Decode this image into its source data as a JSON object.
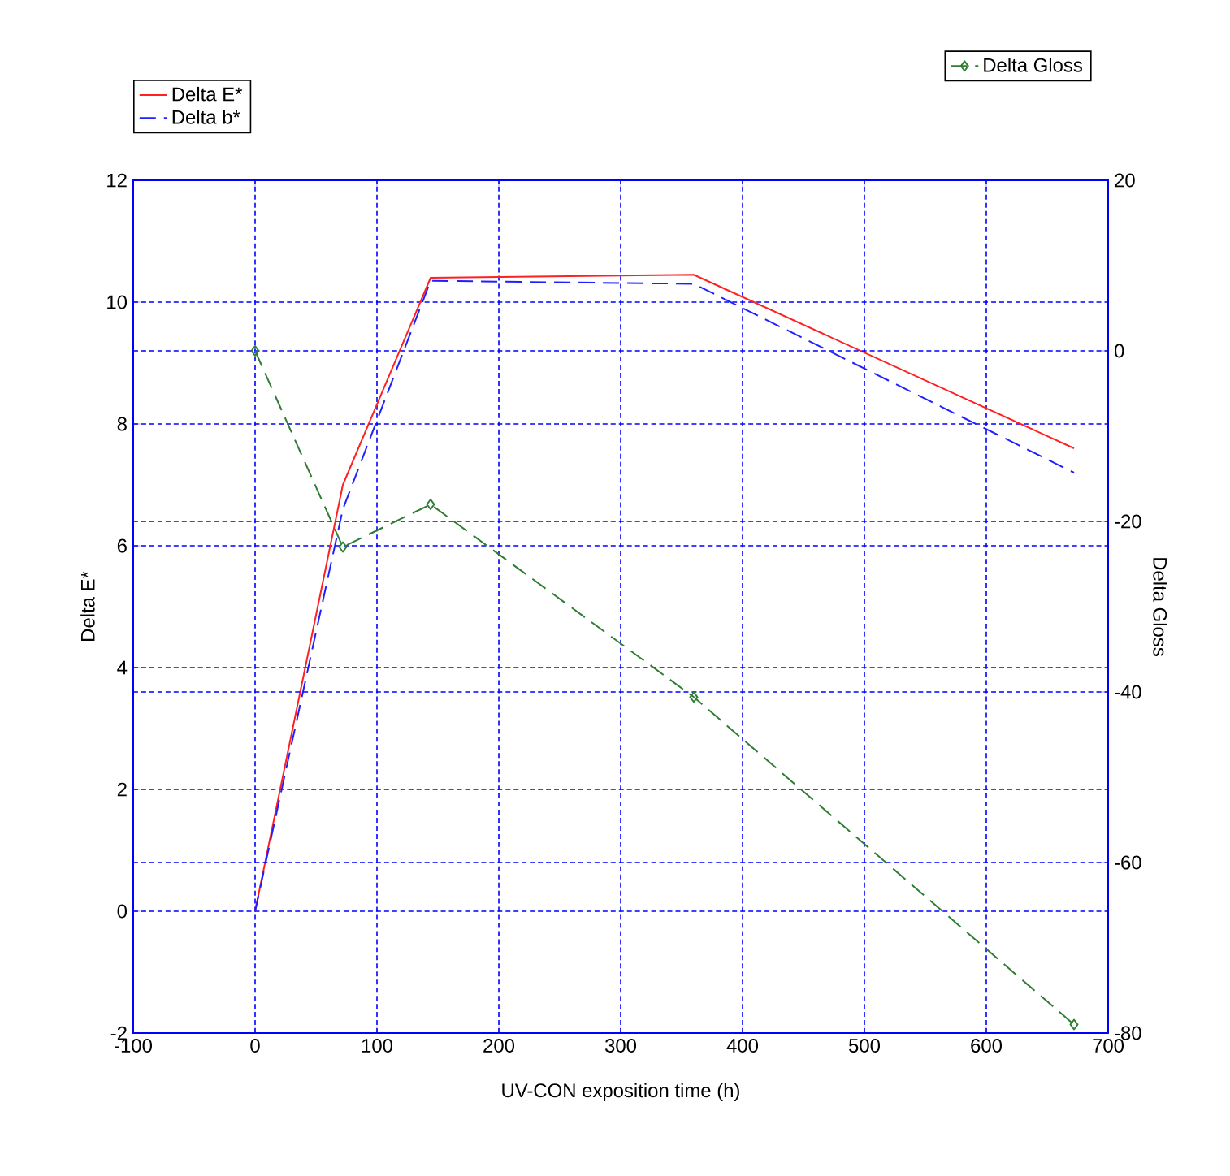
{
  "chart_data": {
    "type": "line",
    "xlabel": "UV-CON exposition time (h)",
    "ylabel": "Delta E*",
    "y2label": "Delta Gloss",
    "x": [
      0,
      72,
      144,
      360,
      672
    ],
    "xlim": [
      -100,
      700
    ],
    "xticks": [
      -100,
      0,
      100,
      200,
      300,
      400,
      500,
      600,
      700
    ],
    "ylim": [
      -2,
      12
    ],
    "yticks": [
      -2,
      0,
      2,
      4,
      6,
      8,
      10,
      12
    ],
    "y2lim": [
      -80,
      20
    ],
    "y2ticks": [
      -80,
      -60,
      -40,
      -20,
      0,
      20
    ],
    "grid": true,
    "legend": "top",
    "series": [
      {
        "name": "Delta E*",
        "color": "#ff2020",
        "line_style": "solid",
        "marker": "none",
        "values": [
          0,
          7.0,
          10.4,
          10.45,
          7.6
        ]
      },
      {
        "name": "Delta b*",
        "color": "#2020ff",
        "line_style": "dashed",
        "marker": "none",
        "values": [
          0,
          6.6,
          10.35,
          10.3,
          7.2
        ]
      },
      {
        "name": "Delta Gloss",
        "color": "#2e7d32",
        "line_style": "dashed",
        "marker": "diamond",
        "axis": "y2",
        "values": [
          0,
          -23,
          -18,
          -40.6,
          -79
        ]
      }
    ]
  }
}
